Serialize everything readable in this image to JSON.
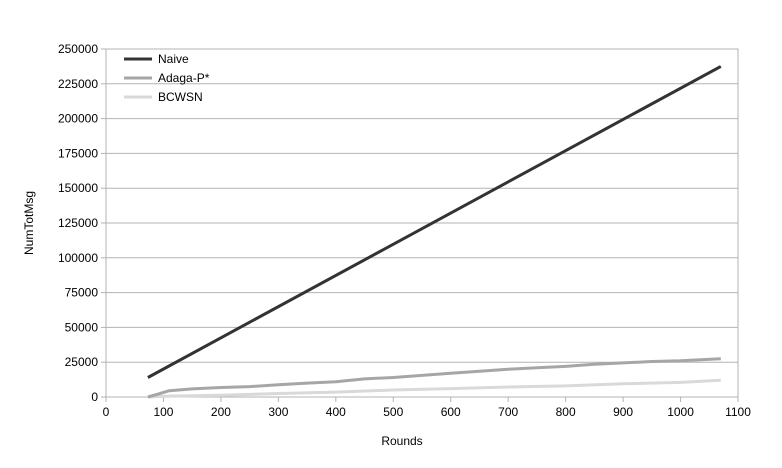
{
  "chart_data": {
    "type": "line",
    "xlabel": "Rounds",
    "ylabel": "NumTotMsg",
    "xlim": [
      0,
      1100
    ],
    "ylim": [
      0,
      250000
    ],
    "x_ticks": [
      "0",
      "100",
      "200",
      "300",
      "400",
      "500",
      "600",
      "700",
      "800",
      "900",
      "1000",
      "1100"
    ],
    "y_ticks": [
      "0",
      "25000",
      "50000",
      "75000",
      "100000",
      "125000",
      "150000",
      "175000",
      "200000",
      "225000",
      "250000"
    ],
    "grid": "horizontal",
    "legend_position": "top-left",
    "series": [
      {
        "name": "Naive",
        "color": "#333333",
        "x": [
          73,
          1070
        ],
        "y": [
          14000,
          237500
        ]
      },
      {
        "name": "Adaga-P*",
        "color": "#a6a6a6",
        "x": [
          73,
          90,
          110,
          150,
          200,
          250,
          300,
          350,
          400,
          450,
          500,
          550,
          600,
          650,
          700,
          750,
          800,
          850,
          900,
          950,
          1000,
          1070
        ],
        "y": [
          0,
          2000,
          4500,
          5800,
          6800,
          7500,
          8800,
          10000,
          11000,
          13000,
          14000,
          15500,
          17000,
          18500,
          20000,
          21000,
          22000,
          23500,
          24500,
          25500,
          26000,
          27500
        ]
      },
      {
        "name": "BCWSN",
        "color": "#d9d9d9",
        "x": [
          73,
          100,
          200,
          300,
          400,
          500,
          600,
          700,
          800,
          900,
          1000,
          1070
        ],
        "y": [
          0,
          500,
          1200,
          2500,
          3500,
          5000,
          6000,
          7200,
          8000,
          9500,
          10500,
          12000
        ]
      }
    ]
  }
}
